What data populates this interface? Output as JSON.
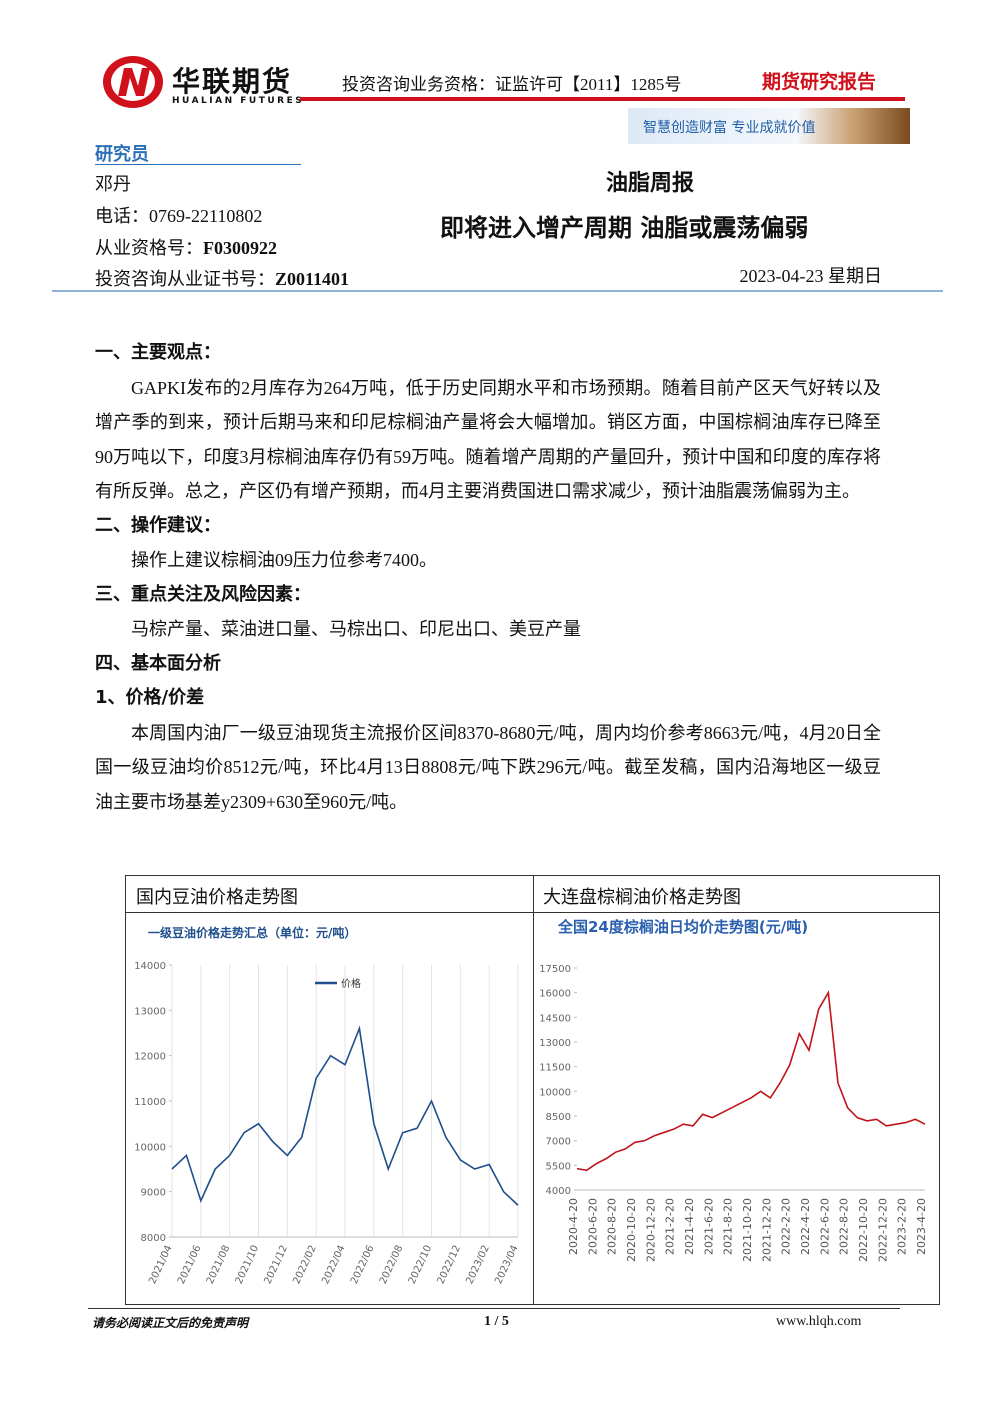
{
  "header": {
    "logo_cn": "华联期货",
    "logo_en": "HUALIAN FUTURES",
    "qualification": "投资咨询业务资格：证监许可【2011】1285号",
    "report_type": "期货研究报告",
    "slogan": "智慧创造财富  专业成就价值"
  },
  "researcher": {
    "heading": "研究员",
    "name": "邓丹",
    "phone": "电话：0769-22110802",
    "license_label": "从业资格号：",
    "license": "F0300922",
    "consult_label": "投资咨询从业证书号：",
    "consult": "Z0011401"
  },
  "report": {
    "title": "油脂周报",
    "subtitle": "即将进入增产周期 油脂或震荡偏弱",
    "date": "2023-04-23 星期日"
  },
  "sections": [
    {
      "heading": "一、主要观点：",
      "paragraphs": [
        "GAPKI发布的2月库存为264万吨，低于历史同期水平和市场预期。随着目前产区天气好转以及增产季的到来，预计后期马来和印尼棕榈油产量将会大幅增加。销区方面，中国棕榈油库存已降至90万吨以下，印度3月棕榈油库存仍有59万吨。随着增产周期的产量回升，预计中国和印度的库存将有所反弹。总之，产区仍有增产预期，而4月主要消费国进口需求减少，预计油脂震荡偏弱为主。"
      ]
    },
    {
      "heading": "二、操作建议：",
      "paragraphs": [
        "操作上建议棕榈油09压力位参考7400。"
      ]
    },
    {
      "heading": "三、重点关注及风险因素：",
      "paragraphs": [
        "马棕产量、菜油进口量、马棕出口、印尼出口、美豆产量"
      ]
    },
    {
      "heading": "四、基本面分析",
      "paragraphs": []
    },
    {
      "heading": "1、价格/价差",
      "paragraphs": [
        "本周国内油厂一级豆油现货主流报价区间8370-8680元/吨，周内均价参考8663元/吨，4月20日全国一级豆油均价8512元/吨，环比4月13日8808元/吨下跌296元/吨。截至发稿，国内沿海地区一级豆油主要市场基差y2309+630至960元/吨。"
      ]
    }
  ],
  "figure_headers": [
    "国内豆油价格走势图",
    "大连盘棕榈油价格走势图"
  ],
  "chart_data": [
    {
      "type": "line",
      "title": "一级豆油价格走势汇总（单位：元/吨）",
      "grid": true,
      "categories": [
        "2021/04",
        null,
        "2021/06",
        null,
        "2021/08",
        null,
        "2021/10",
        null,
        "2021/12",
        null,
        "2022/02",
        null,
        "2022/04",
        null,
        "2022/06",
        null,
        "2022/08",
        null,
        "2022/10",
        null,
        "2022/12",
        null,
        "2023/02",
        null,
        "2023/04"
      ],
      "series": [
        {
          "name": "价格",
          "color": "#1f4e8c",
          "values": [
            9500,
            9800,
            8800,
            9500,
            9800,
            10300,
            10500,
            10100,
            9800,
            10200,
            11500,
            12000,
            11800,
            12600,
            10500,
            9500,
            10300,
            10400,
            11000,
            10200,
            9700,
            9500,
            9600,
            9000,
            8700
          ]
        }
      ],
      "ylim": [
        8000,
        14000
      ],
      "yticks": [
        8000,
        9000,
        10000,
        11000,
        12000,
        13000,
        14000
      ]
    },
    {
      "type": "line",
      "title": "全国24度棕榈油日均价走势图(元/吨)",
      "grid": false,
      "categories": [
        "2020-4-20",
        null,
        "2020-6-20",
        null,
        "2020-8-20",
        null,
        "2020-10-20",
        null,
        "2020-12-20",
        null,
        "2021-2-20",
        null,
        "2021-4-20",
        null,
        "2021-6-20",
        null,
        "2021-8-20",
        null,
        "2021-10-20",
        null,
        "2021-12-20",
        null,
        "2022-2-20",
        null,
        "2022-4-20",
        null,
        "2022-6-20",
        null,
        "2022-8-20",
        null,
        "2022-10-20",
        null,
        "2022-12-20",
        null,
        "2023-2-20",
        null,
        "2023-4-20"
      ],
      "series": [
        {
          "color": "#c0141c",
          "values": [
            5300,
            5200,
            5600,
            5900,
            6300,
            6500,
            6900,
            7000,
            7300,
            7500,
            7700,
            8000,
            7900,
            8600,
            8400,
            8700,
            9000,
            9300,
            9600,
            10000,
            9600,
            10500,
            11600,
            13500,
            12500,
            15000,
            16000,
            10500,
            9000,
            8400,
            8200,
            8300,
            7900,
            8000,
            8100,
            8300,
            8000
          ]
        }
      ],
      "ylim": [
        4000,
        17500
      ],
      "yticks": [
        4000,
        5500,
        7000,
        8500,
        10000,
        11500,
        13000,
        14500,
        16000,
        17500
      ]
    }
  ],
  "footer": {
    "disclaimer": "请务必阅读正文后的免责声明",
    "page": "1 / 5",
    "site": "www.hlqh.com"
  }
}
